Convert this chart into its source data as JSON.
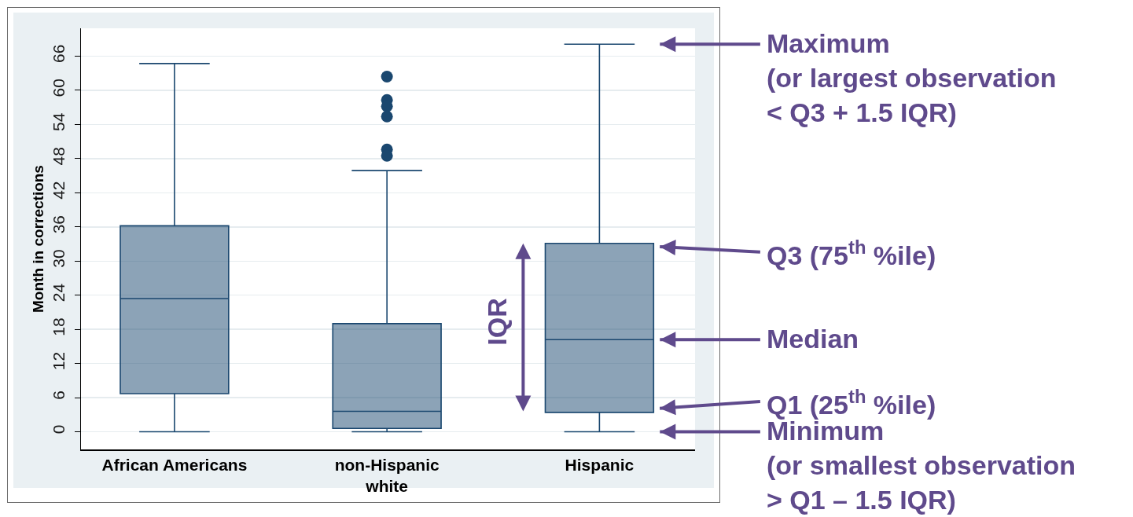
{
  "chart_data": {
    "type": "box",
    "categories": [
      "African Americans",
      "non-Hispanic\nwhite",
      "Hispanic"
    ],
    "boxes": [
      {
        "low": 0,
        "q1": 6.7,
        "median": 23.4,
        "q3": 36.2,
        "high": 64.7
      },
      {
        "low": 0,
        "q1": 0.6,
        "median": 3.6,
        "q3": 19.0,
        "high": 45.9,
        "outliers": [
          62.4,
          58.3,
          57.2,
          55.4,
          49.6,
          48.5
        ]
      },
      {
        "low": 0,
        "q1": 3.4,
        "median": 16.2,
        "q3": 33.1,
        "high": 68.1
      }
    ],
    "color": "#1a476f",
    "marker": "circle",
    "ylabel": "Month in corrections",
    "ylim": [
      -3.1,
      70.9
    ],
    "yticks": [
      0,
      6,
      12,
      18,
      24,
      30,
      36,
      42,
      48,
      54,
      60,
      66
    ],
    "grid": "y",
    "annotations": [
      "Maximum\n(or largest observation\n< Q3 + 1.5 IQR)",
      "Q3 (75$^{th}$ %ile)",
      "Median",
      "Q1 (25$^{th}$ %ile)",
      "Minimum\n(or smallest observation\n> Q1 – 1.5 IQR)",
      "IQR"
    ]
  }
}
